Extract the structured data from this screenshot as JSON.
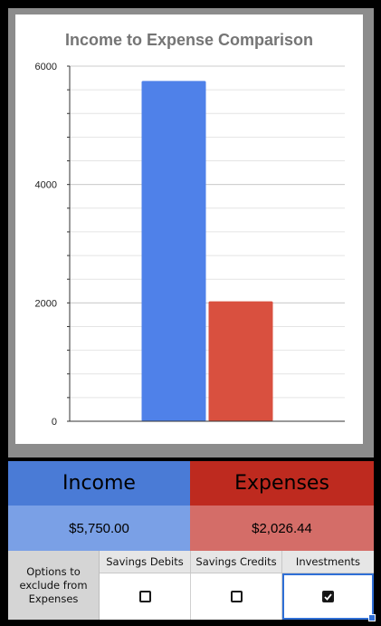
{
  "chart_data": {
    "type": "bar",
    "title": "Income to Expense Comparison",
    "categories": [
      "Income",
      "Expenses"
    ],
    "values": [
      5750,
      2026.44
    ],
    "colors": [
      "#4f81e9",
      "#d9503f"
    ],
    "ylim": [
      0,
      6000
    ],
    "yticks": [
      0,
      2000,
      4000,
      6000
    ],
    "grid": true,
    "legend": "none"
  },
  "summary": {
    "income_header": "Income",
    "expenses_header": "Expenses",
    "income_value": "$5,750.00",
    "expenses_value": "$2,026.44",
    "income_header_color": "#4a7bd6",
    "expenses_header_color": "#be2a1f",
    "income_value_color": "#7aa0e6",
    "expenses_value_color": "#d46d68"
  },
  "options": {
    "label": "Options to exclude from Expenses",
    "columns": [
      {
        "label": "Savings Debits",
        "checked": false
      },
      {
        "label": "Savings Credits",
        "checked": false
      },
      {
        "label": "Investments",
        "checked": true
      }
    ]
  }
}
